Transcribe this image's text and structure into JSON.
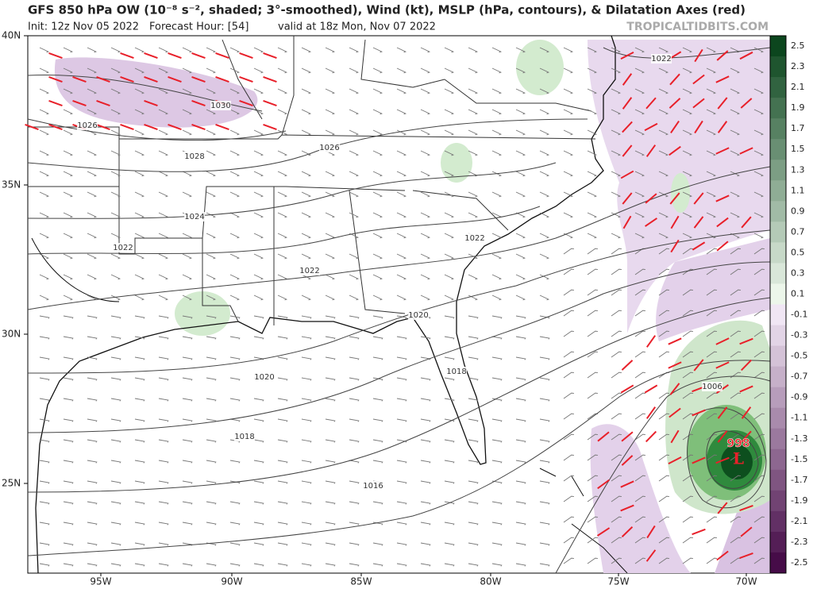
{
  "header": {
    "title": "GFS 850 hPa OW (10⁻⁸ s⁻², shaded; 3°-smoothed), Wind (kt), MSLP (hPa, contours), & Dilatation Axes (red)",
    "init": "Init: 12z Nov 05 2022",
    "forecast": "Forecast Hour: [54]",
    "valid": "valid at 18z Mon, Nov 07 2022",
    "brand": "TROPICALTIDBITS.COM"
  },
  "map": {
    "lat_labels": [
      "40N",
      "35N",
      "30N",
      "25N"
    ],
    "lon_labels": [
      "95W",
      "90W",
      "85W",
      "80W",
      "75W",
      "70W"
    ],
    "contour_labels": [
      "1030",
      "1026",
      "1028",
      "1026",
      "1024",
      "1022",
      "1022",
      "1022",
      "1020",
      "1020",
      "1018",
      "1018",
      "1016",
      "1006",
      "1022"
    ],
    "low": {
      "pressure": "998",
      "symbol": "L"
    }
  },
  "colorbar": {
    "labels": [
      "2.5",
      "2.3",
      "2.1",
      "1.9",
      "1.7",
      "1.5",
      "1.3",
      "1.1",
      "0.9",
      "0.7",
      "0.5",
      "0.3",
      "0.1",
      "-0.1",
      "-0.3",
      "-0.5",
      "-0.7",
      "-0.9",
      "-1.1",
      "-1.3",
      "-1.5",
      "-1.7",
      "-1.9",
      "-2.1",
      "-2.3",
      "-2.5"
    ]
  }
}
